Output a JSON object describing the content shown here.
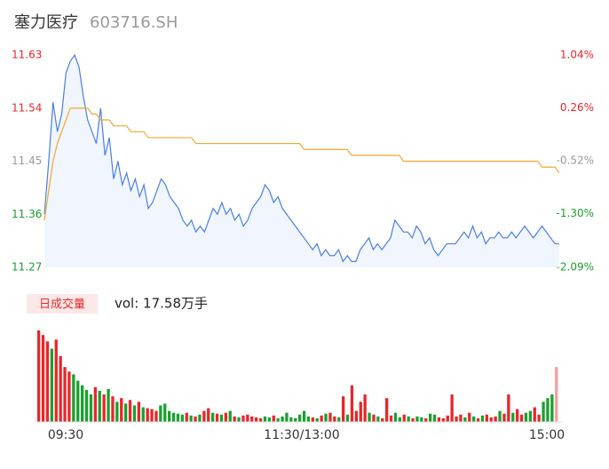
{
  "chart_data": [
    {
      "type": "line",
      "title": "塞力医疗",
      "subtitle": "603716.SH",
      "ylim": [
        11.27,
        11.63
      ],
      "yticks": [
        11.63,
        11.54,
        11.45,
        11.36,
        11.27
      ],
      "y2lim": [
        -2.09,
        1.04
      ],
      "y2ticks": [
        {
          "value": 1.04,
          "label": "1.04%"
        },
        {
          "value": 0.26,
          "label": "0.26%"
        },
        {
          "value": -0.52,
          "label": "-0.52%"
        },
        {
          "value": -1.3,
          "label": "-1.30%"
        },
        {
          "value": -2.09,
          "label": "-2.09%"
        }
      ],
      "up_color": "#e8262a",
      "down_color": "#1aa02f",
      "flat_color": "#999999",
      "series": [
        {
          "name": "price",
          "color": "#4a7fe0",
          "values": [
            11.36,
            11.45,
            11.55,
            11.5,
            11.53,
            11.6,
            11.62,
            11.63,
            11.61,
            11.56,
            11.52,
            11.5,
            11.48,
            11.54,
            11.46,
            11.49,
            11.42,
            11.45,
            11.41,
            11.43,
            11.4,
            11.42,
            11.39,
            11.41,
            11.37,
            11.38,
            11.4,
            11.42,
            11.41,
            11.39,
            11.38,
            11.37,
            11.35,
            11.34,
            11.35,
            11.33,
            11.34,
            11.33,
            11.35,
            11.37,
            11.36,
            11.38,
            11.36,
            11.37,
            11.35,
            11.36,
            11.34,
            11.35,
            11.37,
            11.38,
            11.39,
            11.41,
            11.4,
            11.38,
            11.39,
            11.37,
            11.36,
            11.35,
            11.34,
            11.33,
            11.32,
            11.31,
            11.3,
            11.31,
            11.29,
            11.3,
            11.29,
            11.29,
            11.3,
            11.28,
            11.29,
            11.28,
            11.28,
            11.3,
            11.31,
            11.32,
            11.3,
            11.31,
            11.3,
            11.31,
            11.32,
            11.35,
            11.34,
            11.33,
            11.33,
            11.32,
            11.34,
            11.33,
            11.31,
            11.32,
            11.3,
            11.29,
            11.3,
            11.31,
            11.31,
            11.31,
            11.32,
            11.33,
            11.32,
            11.34,
            11.32,
            11.33,
            11.31,
            11.32,
            11.32,
            11.33,
            11.32,
            11.32,
            11.33,
            11.32,
            11.33,
            11.34,
            11.33,
            11.32,
            11.33,
            11.34,
            11.33,
            11.32,
            11.31,
            11.31
          ]
        },
        {
          "name": "average",
          "color": "#f0a830",
          "values": [
            11.35,
            11.4,
            11.45,
            11.48,
            11.5,
            11.52,
            11.54,
            11.54,
            11.54,
            11.54,
            11.54,
            11.53,
            11.53,
            11.52,
            11.52,
            11.52,
            11.51,
            11.51,
            11.51,
            11.51,
            11.5,
            11.5,
            11.5,
            11.5,
            11.49,
            11.49,
            11.49,
            11.49,
            11.49,
            11.49,
            11.49,
            11.49,
            11.49,
            11.49,
            11.49,
            11.48,
            11.48,
            11.48,
            11.48,
            11.48,
            11.48,
            11.48,
            11.48,
            11.48,
            11.48,
            11.48,
            11.48,
            11.48,
            11.48,
            11.48,
            11.48,
            11.48,
            11.48,
            11.48,
            11.48,
            11.48,
            11.48,
            11.48,
            11.48,
            11.48,
            11.47,
            11.47,
            11.47,
            11.47,
            11.47,
            11.47,
            11.47,
            11.47,
            11.47,
            11.47,
            11.47,
            11.46,
            11.46,
            11.46,
            11.46,
            11.46,
            11.46,
            11.46,
            11.46,
            11.46,
            11.46,
            11.46,
            11.46,
            11.45,
            11.45,
            11.45,
            11.45,
            11.45,
            11.45,
            11.45,
            11.45,
            11.45,
            11.45,
            11.45,
            11.45,
            11.45,
            11.45,
            11.45,
            11.45,
            11.45,
            11.45,
            11.45,
            11.45,
            11.45,
            11.45,
            11.45,
            11.45,
            11.45,
            11.45,
            11.45,
            11.45,
            11.45,
            11.45,
            11.45,
            11.45,
            11.44,
            11.44,
            11.44,
            11.44,
            11.43
          ]
        }
      ]
    },
    {
      "type": "bar",
      "title": "日成交量",
      "subtitle": "vol: 17.58万手",
      "ylim": [
        0,
        100
      ],
      "time_labels": [
        "09:30",
        "11:30/13:00",
        "15:00"
      ],
      "values": [
        100,
        95,
        88,
        80,
        90,
        72,
        60,
        55,
        52,
        45,
        40,
        35,
        30,
        38,
        34,
        30,
        36,
        28,
        22,
        26,
        20,
        24,
        18,
        22,
        16,
        15,
        14,
        12,
        18,
        20,
        12,
        10,
        9,
        8,
        10,
        7,
        6,
        8,
        12,
        15,
        10,
        9,
        8,
        10,
        12,
        6,
        5,
        7,
        8,
        6,
        5,
        4,
        6,
        5,
        7,
        4,
        6,
        10,
        5,
        4,
        8,
        12,
        6,
        5,
        4,
        7,
        9,
        10,
        6,
        5,
        28,
        8,
        40,
        12,
        22,
        30,
        10,
        8,
        6,
        4,
        26,
        7,
        10,
        5,
        8,
        6,
        4,
        6,
        5,
        4,
        9,
        8,
        5,
        4,
        7,
        30,
        6,
        8,
        5,
        10,
        6,
        4,
        7,
        8,
        5,
        6,
        12,
        9,
        30,
        10,
        14,
        8,
        10,
        12,
        16,
        8,
        22,
        26,
        30,
        60
      ]
    }
  ]
}
